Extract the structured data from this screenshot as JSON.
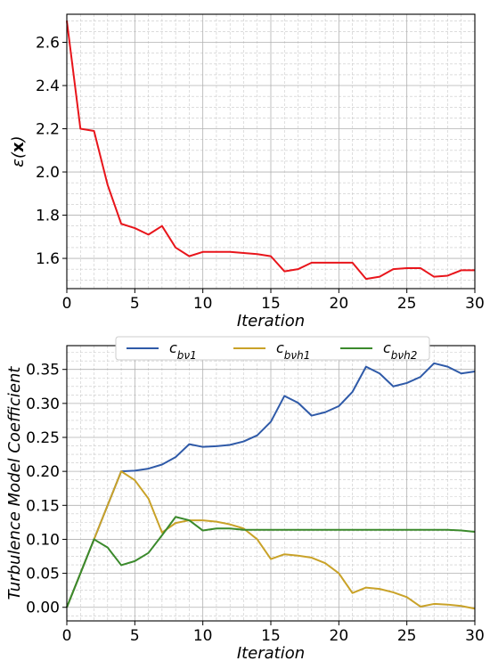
{
  "chart_data": [
    {
      "type": "line",
      "xlabel": "Iteration",
      "ylabel": "ε(x)",
      "xlim": [
        0,
        30
      ],
      "ylim": [
        1.46,
        2.73
      ],
      "xticks": [
        "0",
        "5",
        "10",
        "15",
        "20",
        "25",
        "30"
      ],
      "yticks": [
        "1.6",
        "1.8",
        "2.0",
        "2.2",
        "2.4",
        "2.6"
      ],
      "grid": true,
      "x": [
        0,
        1,
        2,
        3,
        4,
        5,
        6,
        7,
        8,
        9,
        10,
        11,
        12,
        13,
        14,
        15,
        16,
        17,
        18,
        19,
        20,
        21,
        22,
        23,
        24,
        25,
        26,
        27,
        28,
        29,
        30
      ],
      "series": [
        {
          "color": "#e8151b",
          "values": [
            2.7,
            2.2,
            2.19,
            1.94,
            1.76,
            1.74,
            1.71,
            1.75,
            1.65,
            1.61,
            1.63,
            1.63,
            1.63,
            1.625,
            1.62,
            1.61,
            1.54,
            1.55,
            1.58,
            1.58,
            1.58,
            1.58,
            1.505,
            1.515,
            1.55,
            1.555,
            1.555,
            1.515,
            1.52,
            1.545,
            1.545
          ]
        }
      ]
    },
    {
      "type": "line",
      "xlabel": "Iteration",
      "ylabel": "Turbulence Model Coefficient",
      "xlim": [
        0,
        30
      ],
      "ylim": [
        -0.02,
        0.385
      ],
      "xticks": [
        "0",
        "5",
        "10",
        "15",
        "20",
        "25",
        "30"
      ],
      "yticks": [
        "0.00",
        "0.05",
        "0.10",
        "0.15",
        "0.20",
        "0.25",
        "0.30",
        "0.35"
      ],
      "grid": true,
      "legend_position": "top-center",
      "x": [
        0,
        1,
        2,
        3,
        4,
        5,
        6,
        7,
        8,
        9,
        10,
        11,
        12,
        13,
        14,
        15,
        16,
        17,
        18,
        19,
        20,
        21,
        22,
        23,
        24,
        25,
        26,
        27,
        28,
        29,
        30
      ],
      "series": [
        {
          "name": "c_bv1",
          "color": "#2f5aa8",
          "values": [
            0.0,
            0.05,
            0.1,
            0.15,
            0.2,
            0.201,
            0.204,
            0.21,
            0.221,
            0.24,
            0.236,
            0.237,
            0.239,
            0.244,
            0.253,
            0.273,
            0.311,
            0.301,
            0.282,
            0.287,
            0.296,
            0.317,
            0.354,
            0.344,
            0.325,
            0.33,
            0.339,
            0.359,
            0.354,
            0.344,
            0.347
          ]
        },
        {
          "name": "c_bvh1",
          "color": "#c9a228",
          "values": [
            0.0,
            0.05,
            0.1,
            0.15,
            0.2,
            0.187,
            0.16,
            0.11,
            0.124,
            0.128,
            0.128,
            0.126,
            0.122,
            0.116,
            0.1,
            0.071,
            0.078,
            0.076,
            0.073,
            0.065,
            0.05,
            0.021,
            0.029,
            0.027,
            0.022,
            0.015,
            0.001,
            0.005,
            0.004,
            0.002,
            -0.002
          ]
        },
        {
          "name": "c_bvh2",
          "color": "#3b8a2c",
          "values": [
            0.0,
            0.05,
            0.1,
            0.088,
            0.062,
            0.068,
            0.08,
            0.106,
            0.133,
            0.128,
            0.113,
            0.116,
            0.116,
            0.114,
            0.114,
            0.114,
            0.114,
            0.114,
            0.114,
            0.114,
            0.114,
            0.114,
            0.114,
            0.114,
            0.114,
            0.114,
            0.114,
            0.114,
            0.114,
            0.113,
            0.111
          ]
        }
      ]
    }
  ]
}
